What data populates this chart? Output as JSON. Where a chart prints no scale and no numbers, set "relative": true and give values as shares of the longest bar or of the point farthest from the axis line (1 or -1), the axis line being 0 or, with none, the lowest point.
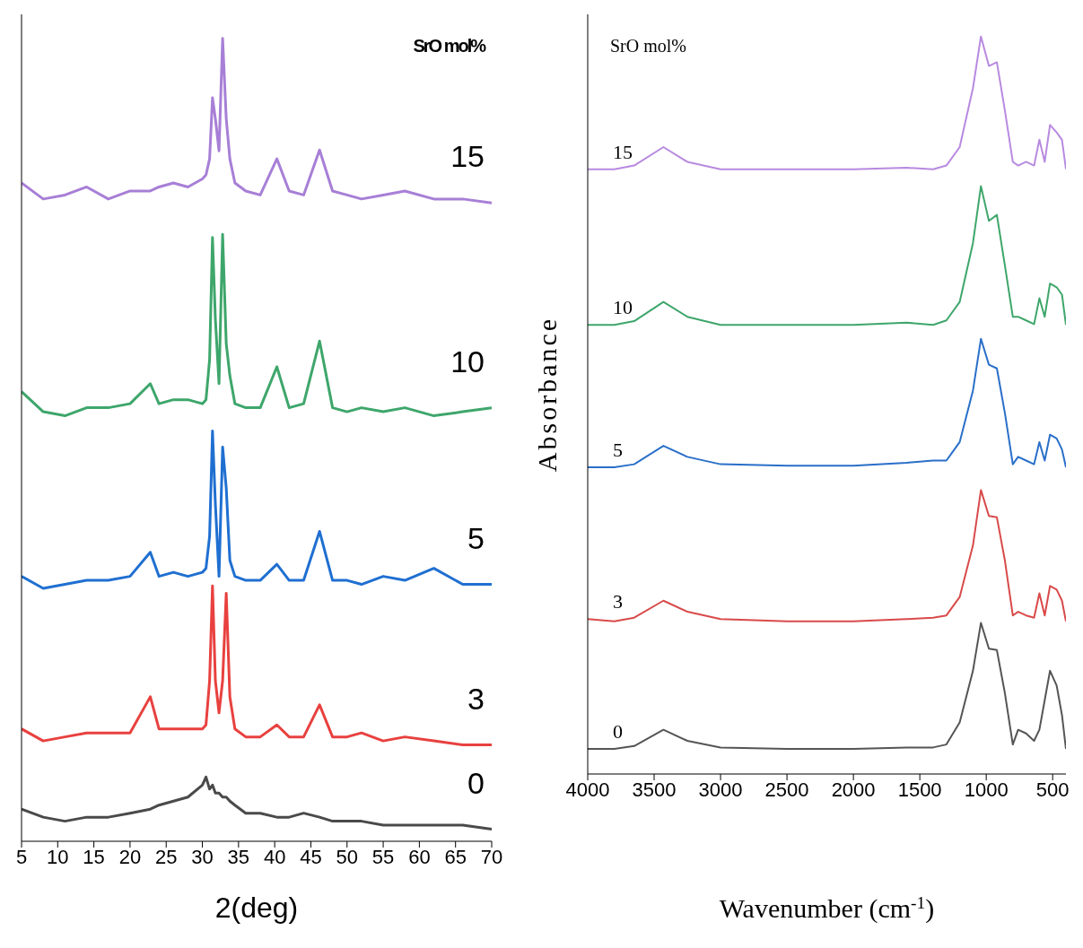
{
  "chart_data": [
    {
      "type": "line",
      "relative": true,
      "xlabel": "2(deg)",
      "legend_title": "SrO mol%",
      "xlim": [
        5,
        70
      ],
      "xticks": [
        5,
        10,
        15,
        20,
        25,
        30,
        35,
        40,
        45,
        50,
        55,
        60,
        65,
        70
      ],
      "tick_labels": "x",
      "marker": "none",
      "x": [
        5,
        8,
        11,
        14,
        17,
        20,
        22.8,
        24,
        26,
        28,
        30,
        30.5,
        31,
        31.4,
        31.8,
        32.3,
        32.8,
        33.3,
        33.8,
        34.5,
        36,
        38,
        40.3,
        42,
        44,
        46.2,
        48,
        50,
        52,
        55,
        58,
        62,
        66,
        70
      ],
      "series": [
        {
          "name": "15",
          "color": "#a77fd6",
          "values": [
            0.82,
            0.8,
            0.805,
            0.815,
            0.8,
            0.81,
            0.81,
            0.815,
            0.82,
            0.815,
            0.825,
            0.83,
            0.85,
            0.926,
            0.9,
            0.86,
            1.0,
            0.9,
            0.85,
            0.82,
            0.81,
            0.805,
            0.85,
            0.81,
            0.805,
            0.861,
            0.81,
            0.805,
            0.8,
            0.805,
            0.81,
            0.8,
            0.8,
            0.795
          ]
        },
        {
          "name": "10",
          "color": "#3ea66b",
          "values": [
            0.56,
            0.535,
            0.53,
            0.54,
            0.54,
            0.545,
            0.57,
            0.545,
            0.55,
            0.55,
            0.545,
            0.55,
            0.6,
            0.752,
            0.65,
            0.57,
            0.756,
            0.62,
            0.58,
            0.545,
            0.54,
            0.54,
            0.591,
            0.54,
            0.545,
            0.623,
            0.54,
            0.535,
            0.54,
            0.535,
            0.54,
            0.53,
            0.535,
            0.54
          ]
        },
        {
          "name": "5",
          "color": "#1f6fd1",
          "values": [
            0.33,
            0.315,
            0.32,
            0.325,
            0.325,
            0.33,
            0.36,
            0.33,
            0.335,
            0.33,
            0.335,
            0.34,
            0.38,
            0.511,
            0.42,
            0.33,
            0.491,
            0.44,
            0.35,
            0.33,
            0.325,
            0.325,
            0.345,
            0.325,
            0.325,
            0.386,
            0.325,
            0.325,
            0.32,
            0.33,
            0.325,
            0.34,
            0.32,
            0.32
          ]
        },
        {
          "name": "3",
          "color": "#e8413f",
          "values": [
            0.14,
            0.125,
            0.13,
            0.135,
            0.135,
            0.135,
            0.18,
            0.14,
            0.14,
            0.14,
            0.14,
            0.145,
            0.2,
            0.318,
            0.2,
            0.16,
            0.2,
            0.309,
            0.18,
            0.14,
            0.13,
            0.13,
            0.145,
            0.13,
            0.13,
            0.17,
            0.13,
            0.13,
            0.135,
            0.125,
            0.13,
            0.125,
            0.12,
            0.12
          ]
        },
        {
          "name": "0",
          "color": "#4a4a4a",
          "values": [
            0.04,
            0.03,
            0.025,
            0.03,
            0.03,
            0.035,
            0.04,
            0.045,
            0.05,
            0.055,
            0.07,
            0.08,
            0.065,
            0.07,
            0.06,
            0.06,
            0.055,
            0.055,
            0.05,
            0.045,
            0.035,
            0.035,
            0.03,
            0.03,
            0.035,
            0.03,
            0.025,
            0.025,
            0.025,
            0.02,
            0.02,
            0.02,
            0.02,
            0.015
          ]
        }
      ]
    },
    {
      "type": "line",
      "relative": true,
      "xlabel": "Wavenumber (cm$^{-1}$)",
      "ylabel": "Absorbance",
      "legend_title": "SrO mol%",
      "xlim": [
        4000,
        400
      ],
      "xticks": [
        4000,
        3500,
        3000,
        2500,
        2000,
        1500,
        1000,
        500
      ],
      "tick_labels": "x",
      "marker": "none",
      "x": [
        4000,
        3800,
        3650,
        3430,
        3250,
        3000,
        2500,
        2000,
        1600,
        1400,
        1300,
        1200,
        1100,
        1040,
        980,
        920,
        860,
        800,
        760,
        700,
        640,
        600,
        560,
        520,
        470,
        430,
        400
      ],
      "series": [
        {
          "name": "15",
          "color": "#b88ae0",
          "values": [
            0.82,
            0.82,
            0.825,
            0.85,
            0.83,
            0.82,
            0.82,
            0.82,
            0.822,
            0.82,
            0.825,
            0.85,
            0.93,
            1.0,
            0.96,
            0.965,
            0.9,
            0.83,
            0.825,
            0.83,
            0.825,
            0.86,
            0.83,
            0.88,
            0.87,
            0.86,
            0.82
          ]
        },
        {
          "name": "10",
          "color": "#3ea66b",
          "values": [
            0.609,
            0.609,
            0.614,
            0.64,
            0.62,
            0.609,
            0.609,
            0.609,
            0.612,
            0.609,
            0.615,
            0.64,
            0.72,
            0.797,
            0.75,
            0.758,
            0.69,
            0.62,
            0.62,
            0.615,
            0.61,
            0.645,
            0.62,
            0.665,
            0.66,
            0.65,
            0.609
          ]
        },
        {
          "name": "5",
          "color": "#2a6fc9",
          "values": [
            0.416,
            0.416,
            0.42,
            0.445,
            0.43,
            0.42,
            0.418,
            0.418,
            0.422,
            0.425,
            0.425,
            0.45,
            0.52,
            0.59,
            0.555,
            0.55,
            0.49,
            0.42,
            0.43,
            0.425,
            0.42,
            0.45,
            0.425,
            0.46,
            0.455,
            0.44,
            0.416
          ]
        },
        {
          "name": "3",
          "color": "#d94a4a",
          "values": [
            0.21,
            0.207,
            0.212,
            0.235,
            0.22,
            0.21,
            0.207,
            0.207,
            0.21,
            0.212,
            0.215,
            0.24,
            0.31,
            0.385,
            0.35,
            0.348,
            0.29,
            0.215,
            0.22,
            0.215,
            0.212,
            0.245,
            0.215,
            0.255,
            0.25,
            0.235,
            0.207
          ]
        },
        {
          "name": "0",
          "color": "#555555",
          "values": [
            0.034,
            0.034,
            0.038,
            0.06,
            0.045,
            0.036,
            0.034,
            0.034,
            0.036,
            0.036,
            0.04,
            0.07,
            0.14,
            0.205,
            0.17,
            0.168,
            0.11,
            0.04,
            0.06,
            0.055,
            0.045,
            0.06,
            0.1,
            0.14,
            0.12,
            0.08,
            0.034
          ]
        }
      ]
    }
  ]
}
